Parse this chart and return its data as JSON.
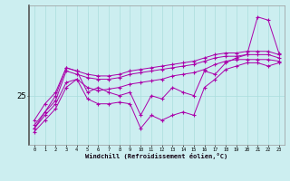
{
  "xlabel": "Windchill (Refroidissement éolien,°C)",
  "background_color": "#cceef0",
  "line_color": "#aa00aa",
  "grid_color": "#aadddd",
  "hours": [
    0,
    1,
    2,
    3,
    4,
    5,
    6,
    7,
    8,
    9,
    10,
    11,
    12,
    13,
    14,
    15,
    16,
    17,
    18,
    19,
    20,
    21,
    22,
    23
  ],
  "line1": [
    23.5,
    24.5,
    25.2,
    26.7,
    26.5,
    26.3,
    26.2,
    26.2,
    26.3,
    26.5,
    26.6,
    26.7,
    26.8,
    26.9,
    27.0,
    27.1,
    27.3,
    27.5,
    27.6,
    27.6,
    27.7,
    27.7,
    27.7,
    27.5
  ],
  "line2": [
    23.2,
    24.0,
    24.7,
    26.5,
    26.3,
    26.1,
    26.0,
    26.0,
    26.1,
    26.3,
    26.4,
    26.5,
    26.6,
    26.7,
    26.8,
    26.9,
    27.1,
    27.3,
    27.4,
    27.4,
    27.5,
    27.5,
    27.5,
    27.3
  ],
  "line3": [
    22.8,
    23.5,
    24.2,
    25.5,
    26.0,
    25.5,
    25.3,
    25.4,
    25.5,
    25.7,
    25.8,
    25.9,
    26.0,
    26.2,
    26.3,
    26.4,
    26.6,
    26.9,
    27.1,
    27.2,
    27.2,
    27.2,
    27.2,
    27.1
  ],
  "line4_main": [
    23.0,
    24.0,
    25.0,
    26.7,
    26.5,
    25.2,
    25.5,
    25.2,
    25.0,
    25.2,
    23.8,
    25.0,
    24.8,
    25.5,
    25.2,
    25.0,
    26.5,
    26.3,
    27.0,
    27.3,
    27.5,
    29.8,
    29.6,
    27.6
  ],
  "line5_lower": [
    23.0,
    23.8,
    24.5,
    25.8,
    26.0,
    24.8,
    24.5,
    24.5,
    24.6,
    24.5,
    23.0,
    23.8,
    23.5,
    23.8,
    24.0,
    23.8,
    25.5,
    26.0,
    26.6,
    26.8,
    27.0,
    27.0,
    26.8,
    27.0
  ],
  "ytick_val": 25,
  "ymin": 22.0,
  "ymax": 30.5
}
